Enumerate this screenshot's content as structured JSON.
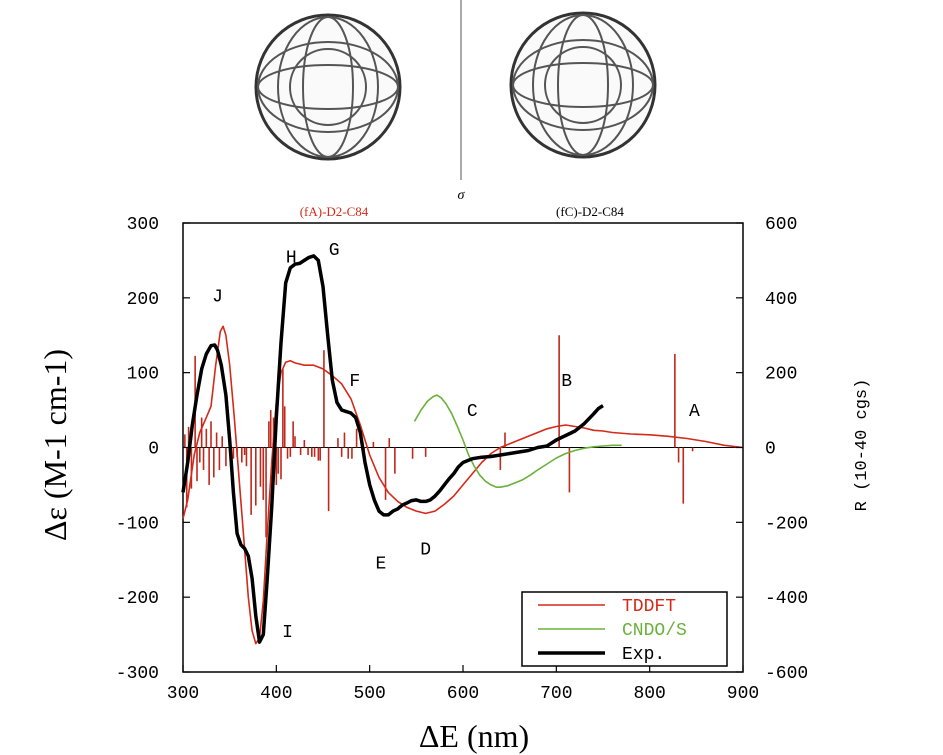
{
  "chart_data": {
    "type": "line",
    "top_labels": {
      "left": "(fA)-D2-C84",
      "center": "σ",
      "right": "(fC)-D2-C84"
    },
    "xlabel": "ΔE (nm)",
    "ylabel_left": "Δε (M-1 cm-1)",
    "ylabel_right": "R (10-40 cgs)",
    "xlim": [
      300,
      900
    ],
    "ylim_left": [
      -300,
      300
    ],
    "ylim_right": [
      -600,
      600
    ],
    "x_ticks": [
      300,
      400,
      500,
      600,
      700,
      800,
      900
    ],
    "y_left_ticks": [
      -300,
      -200,
      -100,
      0,
      100,
      200,
      300
    ],
    "y_right_ticks": [
      -600,
      -400,
      -200,
      0,
      200,
      400,
      600
    ],
    "grid": false,
    "legend_position": "bottom-right",
    "colors": {
      "tddft": "#d42a1a",
      "cndo": "#6ab23a",
      "exp": "#000000",
      "sticks": "#c0281c"
    },
    "series": [
      {
        "name": "TDDFT",
        "axis": "left",
        "points": [
          [
            300,
            -95
          ],
          [
            305,
            -70
          ],
          [
            312,
            -10
          ],
          [
            318,
            20
          ],
          [
            325,
            40
          ],
          [
            330,
            55
          ],
          [
            335,
            110
          ],
          [
            340,
            155
          ],
          [
            343,
            162
          ],
          [
            346,
            150
          ],
          [
            350,
            110
          ],
          [
            355,
            40
          ],
          [
            360,
            -40
          ],
          [
            365,
            -120
          ],
          [
            370,
            -200
          ],
          [
            374,
            -245
          ],
          [
            378,
            -262
          ],
          [
            382,
            -255
          ],
          [
            386,
            -205
          ],
          [
            390,
            -120
          ],
          [
            395,
            -20
          ],
          [
            400,
            60
          ],
          [
            405,
            100
          ],
          [
            410,
            114
          ],
          [
            415,
            116
          ],
          [
            420,
            113
          ],
          [
            430,
            110
          ],
          [
            440,
            110
          ],
          [
            450,
            105
          ],
          [
            460,
            96
          ],
          [
            470,
            85
          ],
          [
            480,
            65
          ],
          [
            490,
            30
          ],
          [
            500,
            -10
          ],
          [
            510,
            -40
          ],
          [
            520,
            -60
          ],
          [
            530,
            -72
          ],
          [
            540,
            -80
          ],
          [
            550,
            -85
          ],
          [
            560,
            -88
          ],
          [
            570,
            -85
          ],
          [
            580,
            -76
          ],
          [
            590,
            -65
          ],
          [
            600,
            -50
          ],
          [
            610,
            -35
          ],
          [
            620,
            -20
          ],
          [
            630,
            -8
          ],
          [
            640,
            0
          ],
          [
            650,
            5
          ],
          [
            660,
            10
          ],
          [
            670,
            15
          ],
          [
            680,
            20
          ],
          [
            690,
            25
          ],
          [
            700,
            28
          ],
          [
            710,
            30
          ],
          [
            720,
            28
          ],
          [
            730,
            26
          ],
          [
            740,
            23
          ],
          [
            750,
            22
          ],
          [
            760,
            20
          ],
          [
            780,
            18
          ],
          [
            800,
            17
          ],
          [
            820,
            15
          ],
          [
            840,
            12
          ],
          [
            860,
            8
          ],
          [
            880,
            3
          ],
          [
            900,
            0
          ]
        ]
      },
      {
        "name": "CNDO/S",
        "axis": "left",
        "points": [
          [
            548,
            35
          ],
          [
            555,
            50
          ],
          [
            562,
            62
          ],
          [
            568,
            68
          ],
          [
            572,
            70
          ],
          [
            577,
            66
          ],
          [
            582,
            58
          ],
          [
            588,
            45
          ],
          [
            594,
            28
          ],
          [
            600,
            10
          ],
          [
            606,
            -10
          ],
          [
            612,
            -25
          ],
          [
            618,
            -37
          ],
          [
            624,
            -45
          ],
          [
            630,
            -50
          ],
          [
            636,
            -53
          ],
          [
            640,
            -53
          ],
          [
            648,
            -51
          ],
          [
            656,
            -47
          ],
          [
            664,
            -43
          ],
          [
            672,
            -37
          ],
          [
            680,
            -30
          ],
          [
            690,
            -22
          ],
          [
            700,
            -14
          ],
          [
            710,
            -8
          ],
          [
            720,
            -4
          ],
          [
            730,
            -1
          ],
          [
            740,
            1
          ],
          [
            750,
            2
          ],
          [
            760,
            3
          ],
          [
            770,
            3
          ]
        ]
      },
      {
        "name": "Exp.",
        "axis": "left",
        "points": [
          [
            300,
            -60
          ],
          [
            305,
            -20
          ],
          [
            310,
            30
          ],
          [
            315,
            70
          ],
          [
            320,
            105
          ],
          [
            325,
            125
          ],
          [
            330,
            136
          ],
          [
            334,
            137
          ],
          [
            337,
            130
          ],
          [
            341,
            110
          ],
          [
            346,
            70
          ],
          [
            350,
            10
          ],
          [
            354,
            -60
          ],
          [
            358,
            -115
          ],
          [
            362,
            -130
          ],
          [
            366,
            -135
          ],
          [
            370,
            -145
          ],
          [
            374,
            -175
          ],
          [
            378,
            -225
          ],
          [
            382,
            -260
          ],
          [
            386,
            -250
          ],
          [
            390,
            -180
          ],
          [
            395,
            -80
          ],
          [
            400,
            40
          ],
          [
            405,
            140
          ],
          [
            410,
            220
          ],
          [
            415,
            240
          ],
          [
            420,
            245
          ],
          [
            425,
            246
          ],
          [
            430,
            250
          ],
          [
            435,
            254
          ],
          [
            440,
            256
          ],
          [
            445,
            250
          ],
          [
            450,
            215
          ],
          [
            455,
            150
          ],
          [
            460,
            90
          ],
          [
            465,
            60
          ],
          [
            470,
            50
          ],
          [
            475,
            48
          ],
          [
            480,
            46
          ],
          [
            485,
            40
          ],
          [
            490,
            20
          ],
          [
            495,
            -20
          ],
          [
            500,
            -50
          ],
          [
            505,
            -70
          ],
          [
            510,
            -85
          ],
          [
            515,
            -90
          ],
          [
            520,
            -90
          ],
          [
            525,
            -85
          ],
          [
            530,
            -82
          ],
          [
            535,
            -77
          ],
          [
            540,
            -74
          ],
          [
            545,
            -71
          ],
          [
            550,
            -70
          ],
          [
            555,
            -72
          ],
          [
            560,
            -72
          ],
          [
            565,
            -70
          ],
          [
            570,
            -65
          ],
          [
            575,
            -58
          ],
          [
            580,
            -50
          ],
          [
            585,
            -42
          ],
          [
            590,
            -35
          ],
          [
            595,
            -26
          ],
          [
            600,
            -20
          ],
          [
            610,
            -15
          ],
          [
            620,
            -13
          ],
          [
            630,
            -12
          ],
          [
            640,
            -10
          ],
          [
            650,
            -8
          ],
          [
            660,
            -6
          ],
          [
            670,
            -4
          ],
          [
            680,
            0
          ],
          [
            690,
            2
          ],
          [
            700,
            10
          ],
          [
            710,
            16
          ],
          [
            720,
            22
          ],
          [
            730,
            32
          ],
          [
            740,
            45
          ],
          [
            745,
            52
          ],
          [
            750,
            56
          ]
        ]
      }
    ],
    "rotatory_strength_sticks": [
      [
        302,
        35
      ],
      [
        304,
        -160
      ],
      [
        306,
        55
      ],
      [
        309,
        -110
      ],
      [
        313,
        245
      ],
      [
        315,
        -90
      ],
      [
        318,
        -40
      ],
      [
        320,
        80
      ],
      [
        322,
        -60
      ],
      [
        325,
        50
      ],
      [
        328,
        -100
      ],
      [
        330,
        70
      ],
      [
        333,
        -80
      ],
      [
        336,
        40
      ],
      [
        339,
        -60
      ],
      [
        342,
        30
      ],
      [
        346,
        -50
      ],
      [
        350,
        25
      ],
      [
        354,
        -30
      ],
      [
        358,
        -25
      ],
      [
        363,
        -40
      ],
      [
        366,
        -20
      ],
      [
        368,
        -50
      ],
      [
        373,
        -180
      ],
      [
        378,
        -155
      ],
      [
        383,
        -105
      ],
      [
        386,
        -140
      ],
      [
        389,
        -240
      ],
      [
        392,
        70
      ],
      [
        394,
        100
      ],
      [
        397,
        80
      ],
      [
        400,
        -100
      ],
      [
        402,
        -70
      ],
      [
        405,
        -85
      ],
      [
        407,
        210
      ],
      [
        409,
        110
      ],
      [
        412,
        -30
      ],
      [
        415,
        -25
      ],
      [
        418,
        70
      ],
      [
        420,
        30
      ],
      [
        426,
        -20
      ],
      [
        430,
        20
      ],
      [
        434,
        -20
      ],
      [
        438,
        -25
      ],
      [
        441,
        -25
      ],
      [
        445,
        -35
      ],
      [
        447,
        -35
      ],
      [
        451,
        260
      ],
      [
        456,
        -170
      ],
      [
        466,
        25
      ],
      [
        470,
        -25
      ],
      [
        473,
        40
      ],
      [
        477,
        -30
      ],
      [
        481,
        -30
      ],
      [
        486,
        50
      ],
      [
        494,
        -25
      ],
      [
        504,
        15
      ],
      [
        517,
        -140
      ],
      [
        521,
        25
      ],
      [
        527,
        -70
      ],
      [
        546,
        -30
      ],
      [
        560,
        -25
      ],
      [
        640,
        -60
      ],
      [
        645,
        40
      ],
      [
        703,
        300
      ],
      [
        714,
        -120
      ],
      [
        827,
        250
      ],
      [
        831,
        -40
      ],
      [
        836,
        -150
      ],
      [
        846,
        -10
      ]
    ],
    "peak_labels": [
      "A",
      "B",
      "C",
      "D",
      "E",
      "F",
      "G",
      "H",
      "I",
      "J"
    ],
    "peak_label_positions": [
      [
        848,
        42
      ],
      [
        711,
        82
      ],
      [
        610,
        42
      ],
      [
        560,
        -143
      ],
      [
        512,
        -162
      ],
      [
        484,
        82
      ],
      [
        462,
        257
      ],
      [
        416,
        247
      ],
      [
        412,
        -253
      ],
      [
        337,
        195
      ]
    ]
  }
}
